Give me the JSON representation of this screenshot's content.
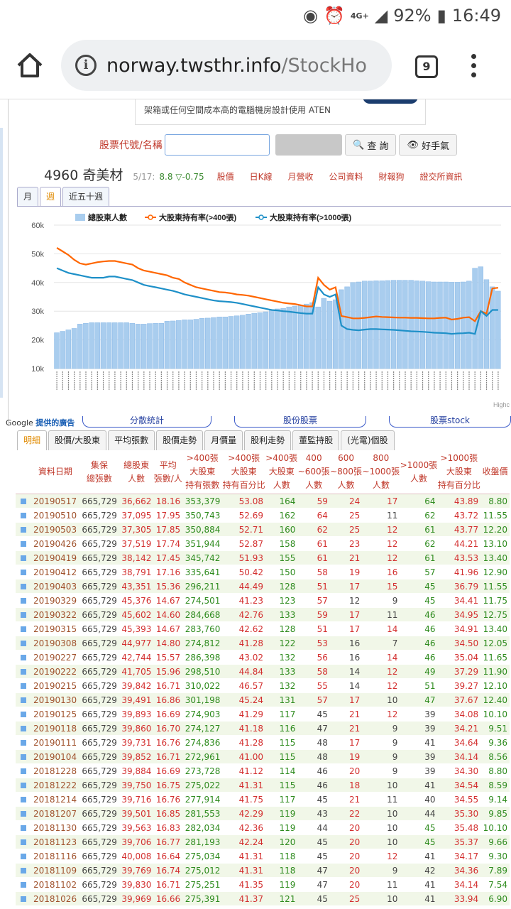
{
  "status": {
    "net": "4G+",
    "battery": "92%",
    "time": "16:49"
  },
  "browser": {
    "url_host": "norway.twsthr.info",
    "url_path": "/StockHo",
    "tab_count": "9"
  },
  "ad": {
    "text": "架箱或任何空間成本高的電腦機房設計使用 ATEN"
  },
  "search": {
    "label": "股票代號/名稱",
    "placeholder": "",
    "query_button": "查 詢",
    "fav_button": "好手氣"
  },
  "stock": {
    "name": "4960 奇美材",
    "date": "5/17:",
    "price": "8.8 ▽-0.75",
    "links": [
      "股價",
      "日K線",
      "月營收",
      "公司資料",
      "財報狗",
      "證交所資訊"
    ]
  },
  "period_tabs": [
    "月",
    "週",
    "近五十週"
  ],
  "chart_data": {
    "type": "bar",
    "legend": [
      "總股東人數",
      "大股東持有率(>400張)",
      "大股東持有率(>1000張)"
    ],
    "y_ticks": [
      "60k",
      "50k",
      "40k",
      "30k",
      "20k",
      "10k"
    ],
    "ylim": [
      10000,
      60000
    ],
    "highcharts_credit": "Highc",
    "series": [
      {
        "name": "總股東人數",
        "color": "#a9cdee",
        "values": [
          22500,
          23000,
          23500,
          24000,
          25500,
          25800,
          26000,
          26000,
          26000,
          26000,
          26000,
          26000,
          26000,
          25800,
          25500,
          25500,
          25700,
          25800,
          25800,
          26500,
          26600,
          26800,
          27000,
          27000,
          27200,
          27500,
          27600,
          27800,
          28000,
          28000,
          28200,
          28400,
          28600,
          29000,
          29300,
          29500,
          29800,
          30500,
          30800,
          31000,
          31500,
          31800,
          32000,
          32500,
          33000,
          31500,
          34500,
          33500,
          34000,
          37500,
          38500,
          40000,
          40200,
          40500,
          40500,
          40600,
          40600,
          40700,
          40800,
          40800,
          40800,
          40800,
          40600,
          40500,
          40300,
          40200,
          40200,
          40200,
          40100,
          40100,
          40200,
          40500,
          45000,
          45500,
          41000,
          38500,
          37000
        ]
      },
      {
        "name": "大股東持有率(>400張)",
        "color": "#ff6600",
        "values": [
          50.5,
          49,
          47.5,
          45.5,
          44,
          43.5,
          44,
          44.5,
          44.8,
          45,
          45,
          44.5,
          44,
          43.5,
          42,
          41,
          40.5,
          40,
          39.5,
          39,
          38,
          37.5,
          36,
          35,
          34,
          33.5,
          33,
          32.5,
          32,
          31.8,
          31.5,
          31,
          30.8,
          30.5,
          30,
          29.5,
          29,
          28.5,
          28,
          27.5,
          27.2,
          27,
          26.5,
          26,
          26,
          38,
          35,
          33,
          34,
          22,
          21.5,
          21,
          21,
          21.2,
          21.5,
          21.8,
          21.6,
          21.5,
          21.4,
          21.3,
          21.3,
          21.2,
          21.2,
          21.1,
          21,
          21,
          21.2,
          21.3,
          20.5,
          20.8,
          21.3,
          21.5,
          19.8,
          24,
          23,
          33.5,
          33.8
        ]
      },
      {
        "name": "大股東持有率(>1000張)",
        "color": "#1e90c8",
        "values": [
          42,
          41,
          40,
          39.5,
          39,
          38.5,
          38,
          38,
          38,
          38.5,
          38.5,
          38,
          37.5,
          37,
          36,
          35,
          34.5,
          34,
          33.5,
          33,
          32.5,
          31.8,
          31,
          30.5,
          30,
          29.5,
          29,
          28.5,
          28.2,
          28,
          27.8,
          27.5,
          27,
          26.5,
          26,
          25.5,
          25,
          24.5,
          24.3,
          24,
          23.8,
          23.5,
          23.2,
          23,
          23,
          34,
          31,
          30,
          31,
          18,
          16.5,
          16.2,
          16,
          16.3,
          16.5,
          16.5,
          16.4,
          16.3,
          16.2,
          16,
          15.8,
          15.6,
          15.5,
          15.4,
          15.2,
          15,
          14.9,
          14.8,
          14.5,
          14.7,
          14.8,
          15,
          14.5,
          24,
          22,
          24.5,
          24.5
        ]
      }
    ]
  },
  "ad_label": {
    "text": "Google ",
    "bold": "提供的廣告"
  },
  "pills": [
    "分散統計",
    "股份股票",
    "股票stock"
  ],
  "data_tabs": [
    "明細",
    "股價/大股東",
    "平均張數",
    "股價走勢",
    "月價量",
    "股利走勢",
    "董監持股",
    "(光電)個股"
  ],
  "table": {
    "headers": [
      "資料日期",
      "集保\n總張數",
      "總股東\n人數",
      "平均\n張數/人",
      ">400張\n大股東\n持有張數",
      ">400張\n大股東\n持有百分比",
      ">400張\n大股東\n人數",
      "400\n~600張\n人數",
      "600\n~800張\n人數",
      "800\n~1000張\n人數",
      ">1000張\n人數",
      ">1000張\n大股東\n持有百分比",
      "收盤價"
    ],
    "rows": [
      [
        "20190517",
        "665,729",
        "36,662",
        "18.16",
        "353,379",
        "53.08",
        "164",
        "59",
        "24",
        "17",
        "64",
        "43.89",
        "8.80"
      ],
      [
        "20190510",
        "665,729",
        "37,095",
        "17.95",
        "350,743",
        "52.69",
        "162",
        "64",
        "25",
        "11",
        "62",
        "43.72",
        "11.55"
      ],
      [
        "20190503",
        "665,729",
        "37,305",
        "17.85",
        "350,884",
        "52.71",
        "160",
        "62",
        "25",
        "12",
        "61",
        "43.77",
        "12.20"
      ],
      [
        "20190426",
        "665,729",
        "37,519",
        "17.74",
        "351,944",
        "52.87",
        "158",
        "61",
        "23",
        "12",
        "62",
        "44.21",
        "13.10"
      ],
      [
        "20190419",
        "665,729",
        "38,142",
        "17.45",
        "345,742",
        "51.93",
        "155",
        "61",
        "21",
        "12",
        "61",
        "43.53",
        "13.40"
      ],
      [
        "20190412",
        "665,729",
        "38,791",
        "17.16",
        "335,641",
        "50.42",
        "150",
        "58",
        "19",
        "16",
        "57",
        "41.96",
        "12.90"
      ],
      [
        "20190403",
        "665,729",
        "43,351",
        "15.36",
        "296,211",
        "44.49",
        "128",
        "51",
        "17",
        "15",
        "45",
        "36.79",
        "11.55"
      ],
      [
        "20190329",
        "665,729",
        "45,376",
        "14.67",
        "274,501",
        "41.23",
        "123",
        "57",
        "12",
        "9",
        "45",
        "34.41",
        "11.75"
      ],
      [
        "20190322",
        "665,729",
        "45,602",
        "14.60",
        "284,668",
        "42.76",
        "133",
        "59",
        "17",
        "11",
        "46",
        "34.95",
        "12.75"
      ],
      [
        "20190315",
        "665,729",
        "45,393",
        "14.67",
        "283,760",
        "42.62",
        "128",
        "51",
        "17",
        "14",
        "46",
        "34.91",
        "13.40"
      ],
      [
        "20190308",
        "665,729",
        "44,977",
        "14.80",
        "274,812",
        "41.28",
        "122",
        "53",
        "16",
        "7",
        "46",
        "34.50",
        "12.05"
      ],
      [
        "20190227",
        "665,729",
        "42,744",
        "15.57",
        "286,398",
        "43.02",
        "132",
        "56",
        "16",
        "14",
        "46",
        "35.04",
        "11.65"
      ],
      [
        "20190222",
        "665,729",
        "41,705",
        "15.96",
        "298,510",
        "44.84",
        "133",
        "58",
        "14",
        "12",
        "49",
        "37.29",
        "11.90"
      ],
      [
        "20190215",
        "665,729",
        "39,842",
        "16.71",
        "310,022",
        "46.57",
        "132",
        "55",
        "14",
        "12",
        "51",
        "39.27",
        "12.10"
      ],
      [
        "20190130",
        "665,729",
        "39,491",
        "16.86",
        "301,198",
        "45.24",
        "131",
        "57",
        "17",
        "10",
        "47",
        "37.67",
        "12.40"
      ],
      [
        "20190125",
        "665,729",
        "39,893",
        "16.69",
        "274,903",
        "41.29",
        "117",
        "45",
        "21",
        "12",
        "39",
        "34.08",
        "10.10"
      ],
      [
        "20190118",
        "665,729",
        "39,860",
        "16.70",
        "274,127",
        "41.18",
        "116",
        "47",
        "21",
        "9",
        "39",
        "34.21",
        "9.51"
      ],
      [
        "20190111",
        "665,729",
        "39,731",
        "16.76",
        "274,836",
        "41.28",
        "115",
        "48",
        "17",
        "9",
        "41",
        "34.64",
        "9.36"
      ],
      [
        "20190104",
        "665,729",
        "39,852",
        "16.71",
        "272,961",
        "41.00",
        "115",
        "48",
        "19",
        "9",
        "39",
        "34.14",
        "8.56"
      ],
      [
        "20181228",
        "665,729",
        "39,884",
        "16.69",
        "273,728",
        "41.12",
        "114",
        "46",
        "20",
        "9",
        "39",
        "34.30",
        "8.80"
      ],
      [
        "20181222",
        "665,729",
        "39,750",
        "16.75",
        "275,022",
        "41.31",
        "115",
        "46",
        "18",
        "10",
        "41",
        "34.54",
        "8.59"
      ],
      [
        "20181214",
        "665,729",
        "39,716",
        "16.76",
        "277,914",
        "41.75",
        "117",
        "45",
        "21",
        "11",
        "40",
        "34.55",
        "9.14"
      ],
      [
        "20181207",
        "665,729",
        "39,501",
        "16.85",
        "281,553",
        "42.29",
        "119",
        "43",
        "22",
        "10",
        "44",
        "35.30",
        "9.85"
      ],
      [
        "20181130",
        "665,729",
        "39,563",
        "16.83",
        "282,034",
        "42.36",
        "119",
        "44",
        "20",
        "10",
        "45",
        "35.48",
        "10.10"
      ],
      [
        "20181123",
        "665,729",
        "39,706",
        "16.77",
        "281,193",
        "42.24",
        "120",
        "45",
        "20",
        "10",
        "45",
        "35.37",
        "9.66"
      ],
      [
        "20181116",
        "665,729",
        "40,008",
        "16.64",
        "275,034",
        "41.31",
        "118",
        "45",
        "20",
        "12",
        "41",
        "34.17",
        "9.30"
      ],
      [
        "20181109",
        "665,729",
        "39,769",
        "16.74",
        "275,012",
        "41.31",
        "118",
        "47",
        "20",
        "9",
        "42",
        "34.36",
        "7.89"
      ],
      [
        "20181102",
        "665,729",
        "39,830",
        "16.71",
        "275,251",
        "41.35",
        "119",
        "47",
        "20",
        "11",
        "41",
        "34.14",
        "7.54"
      ],
      [
        "20181026",
        "665,729",
        "39,969",
        "16.66",
        "275,391",
        "41.37",
        "121",
        "45",
        "25",
        "10",
        "41",
        "33.94",
        "6.90"
      ]
    ]
  }
}
